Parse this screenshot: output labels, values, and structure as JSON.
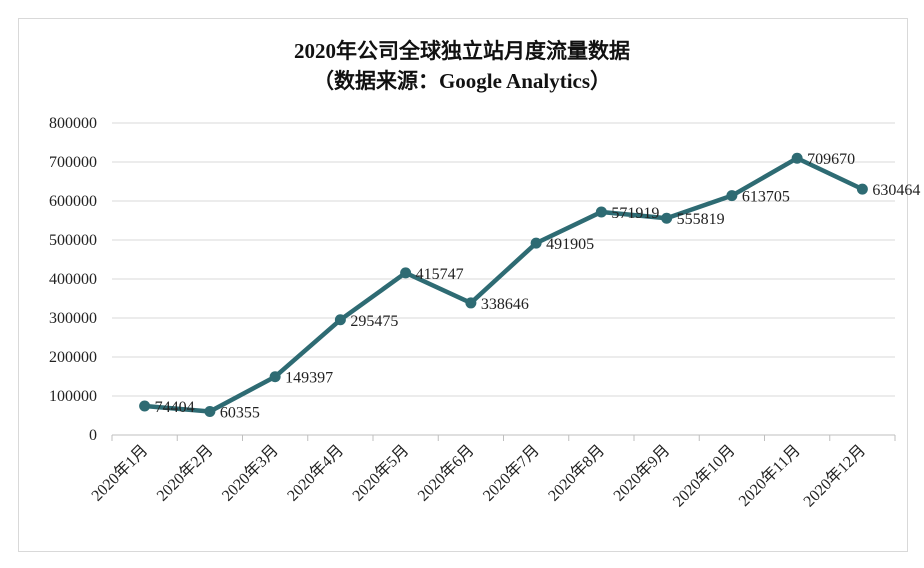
{
  "chart_data": {
    "type": "line",
    "title": "2020年公司全球独立站月度流量数据",
    "subtitle": "（数据来源：Google Analytics）",
    "categories": [
      "2020年1月",
      "2020年2月",
      "2020年3月",
      "2020年4月",
      "2020年5月",
      "2020年6月",
      "2020年7月",
      "2020年8月",
      "2020年9月",
      "2020年10月",
      "2020年11月",
      "2020年12月"
    ],
    "values": [
      74404,
      60355,
      149397,
      295475,
      415747,
      338646,
      491905,
      571919,
      555819,
      613705,
      709670,
      630464
    ],
    "data_labels": [
      "74404",
      "60355",
      "149397",
      "295475",
      "415747",
      "338646",
      "491905",
      "571919",
      "555819",
      "613705",
      "709670",
      "630464"
    ],
    "y_ticks": [
      "0",
      "100000",
      "200000",
      "300000",
      "400000",
      "500000",
      "600000",
      "700000",
      "800000"
    ],
    "ylim": [
      0,
      800000
    ],
    "grid": true,
    "legend": "none",
    "line_color": "#2e6b73"
  }
}
